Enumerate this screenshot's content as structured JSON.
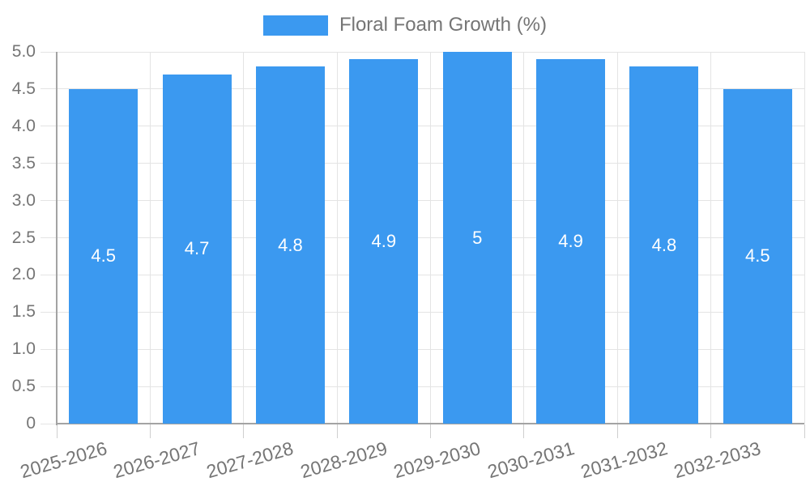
{
  "legend": {
    "label": "Floral Foam Growth (%)"
  },
  "chart_data": {
    "type": "bar",
    "title": "Floral Foam Growth (%)",
    "categories": [
      "2025-2026",
      "2026-2027",
      "2027-2028",
      "2028-2029",
      "2029-2030",
      "2030-2031",
      "2031-2032",
      "2032-2033"
    ],
    "values": [
      4.5,
      4.7,
      4.8,
      4.9,
      5,
      4.9,
      4.8,
      4.5
    ],
    "value_labels": [
      "4.5",
      "4.7",
      "4.8",
      "4.9",
      "5",
      "4.9",
      "4.8",
      "4.5"
    ],
    "xlabel": "",
    "ylabel": "",
    "ylim": [
      0,
      5
    ],
    "ytick_step": 0.5,
    "ytick_labels": [
      "0",
      "0.5",
      "1.0",
      "1.5",
      "2.0",
      "2.5",
      "3.0",
      "3.5",
      "4.0",
      "4.5",
      "5.0"
    ],
    "grid": true,
    "legend_position": "top-center",
    "colors": {
      "bar": "#3B99F0",
      "bar_value_label": "#ffffff",
      "axis_line": "#A3A3A3",
      "grid_line": "#E4E4E4",
      "tick_line": "#CFCFCF",
      "axis_text": "#757575",
      "legend_text": "#757575"
    }
  }
}
